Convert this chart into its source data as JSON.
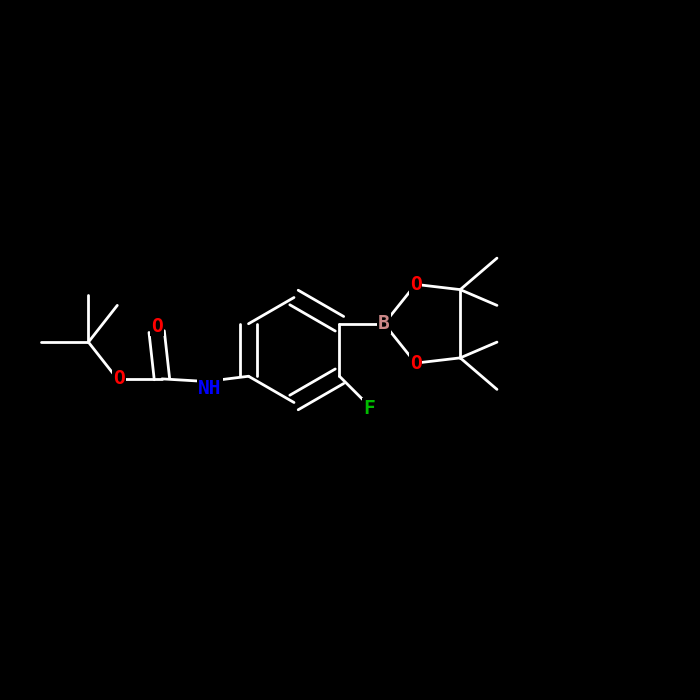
{
  "bg_color": "#000000",
  "fig_width": 7.0,
  "fig_height": 7.0,
  "dpi": 100,
  "bond_color": "#ffffff",
  "bond_lw": 2.0,
  "colors": {
    "C": "#ffffff",
    "O": "#ff0000",
    "N": "#0000ff",
    "F": "#00bb00",
    "B": "#cc8888",
    "H": "#ffffff"
  },
  "font_size": 14,
  "font_size_small": 11
}
